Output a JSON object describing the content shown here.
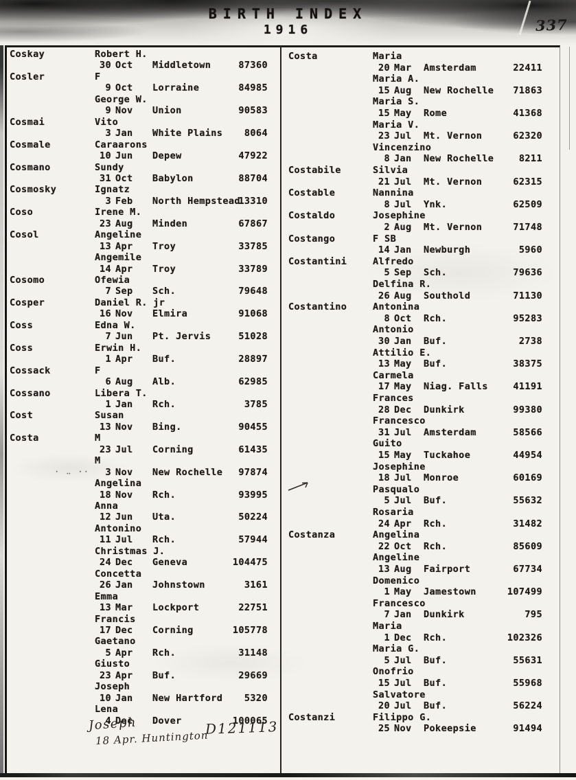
{
  "header": {
    "title": "BIRTH INDEX",
    "year": "1916",
    "page_number": "337"
  },
  "colors": {
    "ink": "#1e1a17",
    "paper": "#f3f2ec"
  },
  "columns": [
    {
      "rows": [
        {
          "type": "name",
          "surname": "Coskay",
          "given": "Robert H."
        },
        {
          "type": "record",
          "date": "30 Oct",
          "place": "Middletown",
          "number": "87360"
        },
        {
          "type": "name",
          "surname": "Cosler",
          "given": "F"
        },
        {
          "type": "record",
          "date": "9 Oct",
          "place": "Lorraine",
          "number": "84985"
        },
        {
          "type": "name",
          "given": "George W."
        },
        {
          "type": "record",
          "date": "9 Nov",
          "place": "Union",
          "number": "90583"
        },
        {
          "type": "name",
          "surname": "Cosmai",
          "given": "Vito"
        },
        {
          "type": "record",
          "date": "3 Jan",
          "place": "White Plains",
          "number": "8064"
        },
        {
          "type": "name",
          "surname": "Cosmale",
          "given": "Caraarons"
        },
        {
          "type": "record",
          "date": "10 Jun",
          "place": "Depew",
          "number": "47922"
        },
        {
          "type": "name",
          "surname": "Cosmano",
          "given": "Sundy"
        },
        {
          "type": "record",
          "date": "31 Oct",
          "place": "Babylon",
          "number": "88704"
        },
        {
          "type": "name",
          "surname": "Cosmosky",
          "given": "Ignatz"
        },
        {
          "type": "record",
          "date": "3 Feb",
          "place": "North Hempstead",
          "number": "13310"
        },
        {
          "type": "name",
          "surname": "Coso",
          "given": "Irene M."
        },
        {
          "type": "record",
          "date": "23 Aug",
          "place": "Minden",
          "number": "67867"
        },
        {
          "type": "name",
          "surname": "Cosol",
          "given": "Angeline"
        },
        {
          "type": "record",
          "date": "13 Apr",
          "place": "Troy",
          "number": "33785"
        },
        {
          "type": "name",
          "given": "Angemile"
        },
        {
          "type": "record",
          "date": "14 Apr",
          "place": "Troy",
          "number": "33789"
        },
        {
          "type": "name",
          "surname": "Cosomo",
          "given": "Ofewia"
        },
        {
          "type": "record",
          "date": "7 Sep",
          "place": "Sch.",
          "number": "79648"
        },
        {
          "type": "name",
          "surname": "Cosper",
          "given": "Daniel R. jr"
        },
        {
          "type": "record",
          "date": "16 Nov",
          "place": "Elmira",
          "number": "91068"
        },
        {
          "type": "name",
          "surname": "Coss",
          "given": "Edna W."
        },
        {
          "type": "record",
          "date": "7 Jun",
          "place": "Pt. Jervis",
          "number": "51028"
        },
        {
          "type": "name",
          "surname": "Coss",
          "given": "Erwin H."
        },
        {
          "type": "record",
          "date": "1 Apr",
          "place": "Buf.",
          "number": "28897"
        },
        {
          "type": "name",
          "surname": "Cossack",
          "given": "F"
        },
        {
          "type": "record",
          "date": "6 Aug",
          "place": "Alb.",
          "number": "62985"
        },
        {
          "type": "name",
          "surname": "Cossano",
          "given": "Libera T."
        },
        {
          "type": "record",
          "date": "1 Jan",
          "place": "Rch.",
          "number": "3785"
        },
        {
          "type": "name",
          "surname": "Cost",
          "given": "Susan"
        },
        {
          "type": "record",
          "date": "13 Nov",
          "place": "Bing.",
          "number": "90455"
        },
        {
          "type": "name",
          "surname": "Costa",
          "given": "M"
        },
        {
          "type": "record",
          "date": "23 Jul",
          "place": "Corning",
          "number": "61435"
        },
        {
          "type": "name",
          "given": "M"
        },
        {
          "type": "record",
          "date": "3 Nov",
          "place": "New Rochelle",
          "number": "97874",
          "pencil": true
        },
        {
          "type": "name",
          "given": "Angelina"
        },
        {
          "type": "record",
          "date": "18 Nov",
          "place": "Rch.",
          "number": "93995"
        },
        {
          "type": "name",
          "given": "Anna"
        },
        {
          "type": "record",
          "date": "12 Jun",
          "place": "Uta.",
          "number": "50224"
        },
        {
          "type": "name",
          "given": "Antonino"
        },
        {
          "type": "record",
          "date": "11 Jul",
          "place": "Rch.",
          "number": "57944"
        },
        {
          "type": "name",
          "given": "Christmas J."
        },
        {
          "type": "record",
          "date": "24 Dec",
          "place": "Geneva",
          "number": "104475"
        },
        {
          "type": "name",
          "given": "Concetta"
        },
        {
          "type": "record",
          "date": "26 Jan",
          "place": "Johnstown",
          "number": "3161"
        },
        {
          "type": "name",
          "given": "Emma"
        },
        {
          "type": "record",
          "date": "13 Mar",
          "place": "Lockport",
          "number": "22751"
        },
        {
          "type": "name",
          "given": "Francis"
        },
        {
          "type": "record",
          "date": "17 Dec",
          "place": "Corning",
          "number": "105778"
        },
        {
          "type": "name",
          "given": "Gaetano"
        },
        {
          "type": "record",
          "date": "5 Apr",
          "place": "Rch.",
          "number": "31148"
        },
        {
          "type": "name",
          "given": "Giusto"
        },
        {
          "type": "record",
          "date": "23 Apr",
          "place": "Buf.",
          "number": "29669"
        },
        {
          "type": "name",
          "given": "Joseph"
        },
        {
          "type": "record",
          "date": "10 Jan",
          "place": "New Hartford",
          "number": "5320"
        },
        {
          "type": "name",
          "given": "Lena"
        },
        {
          "type": "record",
          "date": "4 Dec",
          "place": "Dover",
          "number": "100065"
        }
      ]
    },
    {
      "rows": [
        {
          "type": "name",
          "surname": "Costa",
          "given": "Maria"
        },
        {
          "type": "record",
          "date": "20 Mar",
          "place": "Amsterdam",
          "number": "22411"
        },
        {
          "type": "name",
          "given": "Maria A."
        },
        {
          "type": "record",
          "date": "15 Aug",
          "place": "New Rochelle",
          "number": "71863"
        },
        {
          "type": "name",
          "given": "Maria S."
        },
        {
          "type": "record",
          "date": "15 May",
          "place": "Rome",
          "number": "41368"
        },
        {
          "type": "name",
          "given": "Maria V."
        },
        {
          "type": "record",
          "date": "23 Jul",
          "place": "Mt. Vernon",
          "number": "62320"
        },
        {
          "type": "name",
          "given": "Vincenzino"
        },
        {
          "type": "record",
          "date": "8 Jan",
          "place": "New Rochelle",
          "number": "8211"
        },
        {
          "type": "name",
          "surname": "Costabile",
          "given": "Silvia"
        },
        {
          "type": "record",
          "date": "21 Jul",
          "place": "Mt. Vernon",
          "number": "62315"
        },
        {
          "type": "name",
          "surname": "Costable",
          "given": "Nannina"
        },
        {
          "type": "record",
          "date": "8 Jul",
          "place": "Ynk.",
          "number": "62509"
        },
        {
          "type": "name",
          "surname": "Costaldo",
          "given": "Josephine"
        },
        {
          "type": "record",
          "date": "2 Aug",
          "place": "Mt. Vernon",
          "number": "71748"
        },
        {
          "type": "name",
          "surname": "Costango",
          "given": "F SB"
        },
        {
          "type": "record",
          "date": "14 Jan",
          "place": "Newburgh",
          "number": "5960"
        },
        {
          "type": "name",
          "surname": "Costantini",
          "given": "Alfredo"
        },
        {
          "type": "record",
          "date": "5 Sep",
          "place": "Sch.",
          "number": "79636"
        },
        {
          "type": "name",
          "given": "Delfina R."
        },
        {
          "type": "record",
          "date": "26 Aug",
          "place": "Southold",
          "number": "71130"
        },
        {
          "type": "name",
          "surname": "Costantino",
          "given": "Antonina"
        },
        {
          "type": "record",
          "date": "8 Oct",
          "place": "Rch.",
          "number": "95283"
        },
        {
          "type": "name",
          "given": "Antonio"
        },
        {
          "type": "record",
          "date": "30 Jan",
          "place": "Buf.",
          "number": "2738"
        },
        {
          "type": "name",
          "given": "Attilio E."
        },
        {
          "type": "record",
          "date": "13 May",
          "place": "Buf.",
          "number": "38375"
        },
        {
          "type": "name",
          "given": "Carmela"
        },
        {
          "type": "record",
          "date": "17 May",
          "place": "Niag. Falls",
          "number": "41191"
        },
        {
          "type": "name",
          "given": "Frances"
        },
        {
          "type": "record",
          "date": "28 Dec",
          "place": "Dunkirk",
          "number": "99380"
        },
        {
          "type": "name",
          "given": "Francesco"
        },
        {
          "type": "record",
          "date": "31 Jul",
          "place": "Amsterdam",
          "number": "58566"
        },
        {
          "type": "name",
          "given": "Guito"
        },
        {
          "type": "record",
          "date": "15 May",
          "place": "Tuckahoe",
          "number": "44954"
        },
        {
          "type": "name",
          "given": "Josephine"
        },
        {
          "type": "record",
          "date": "18 Jul",
          "place": "Monroe",
          "number": "60169"
        },
        {
          "type": "name",
          "given": "Pasqualo",
          "arrow": true
        },
        {
          "type": "record",
          "date": "5 Jul",
          "place": "Buf.",
          "number": "55632"
        },
        {
          "type": "name",
          "given": "Rosaria"
        },
        {
          "type": "record",
          "date": "24 Apr",
          "place": "Rch.",
          "number": "31482"
        },
        {
          "type": "name",
          "surname": "Costanza",
          "given": "Angelina"
        },
        {
          "type": "record",
          "date": "22 Oct",
          "place": "Rch.",
          "number": "85609"
        },
        {
          "type": "name",
          "given": "Angeline"
        },
        {
          "type": "record",
          "date": "13 Aug",
          "place": "Fairport",
          "number": "67734"
        },
        {
          "type": "name",
          "given": "Domenico"
        },
        {
          "type": "record",
          "date": "1 May",
          "place": "Jamestown",
          "number": "107499"
        },
        {
          "type": "name",
          "given": "Francesco"
        },
        {
          "type": "record",
          "date": "7 Jan",
          "place": "Dunkirk",
          "number": "795"
        },
        {
          "type": "name",
          "given": "Maria"
        },
        {
          "type": "record",
          "date": "1 Dec",
          "place": "Rch.",
          "number": "102326"
        },
        {
          "type": "name",
          "given": "Maria G."
        },
        {
          "type": "record",
          "date": "5 Jul",
          "place": "Buf.",
          "number": "55631"
        },
        {
          "type": "name",
          "given": "Onofrio"
        },
        {
          "type": "record",
          "date": "15 Jul",
          "place": "Buf.",
          "number": "55968"
        },
        {
          "type": "name",
          "given": "Salvatore"
        },
        {
          "type": "record",
          "date": "20 Jul",
          "place": "Buf.",
          "number": "56224"
        },
        {
          "type": "name",
          "surname": "Costanzi",
          "given": "Filippo G."
        },
        {
          "type": "record",
          "date": "25 Nov",
          "place": "Pokeepsie",
          "number": "91494"
        }
      ]
    }
  ],
  "annotations": {
    "pencil_marks": "· ‥ ··",
    "handwritten_given": "Joseph",
    "handwritten_date_place": "18 Apr. Huntington",
    "handwritten_number": "D121113"
  }
}
